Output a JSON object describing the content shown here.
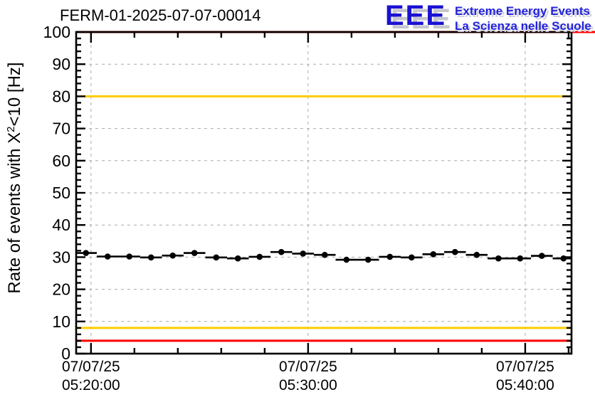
{
  "title": "FERM-01-2025-07-07-00014",
  "logo": {
    "acronym": "EEE",
    "tagline1": "Extreme Energy Events",
    "tagline2": "La Scienza nelle Scuole",
    "text_color": "#2222dd",
    "shadow_color": "#c6c6ce"
  },
  "chart_data": {
    "type": "scatter",
    "title": "FERM-01-2025-07-07-00014",
    "ylabel": {
      "pre": "Rate of events with X",
      "sup": "2",
      "post": "<10 [Hz]"
    },
    "ylim": [
      0,
      100
    ],
    "y_major_tick_step": 10,
    "y_minor_tick_step": 2,
    "grid": {
      "shown": true,
      "style": "dashed",
      "color": "#a9a9a9"
    },
    "x_axis": {
      "domain_seconds_rel_0520": [
        -41,
        1328
      ],
      "minor_tick_step_seconds": 120,
      "major_ticks": [
        {
          "t": 0,
          "date": "07/07/25",
          "time": "05:20:00"
        },
        {
          "t": 600,
          "date": "07/07/25",
          "time": "05:30:00"
        },
        {
          "t": 1200,
          "date": "07/07/25",
          "time": "05:40:00"
        }
      ]
    },
    "threshold_lines": [
      {
        "y": 100,
        "color": "#ff0000",
        "full_width": true
      },
      {
        "y": 80,
        "color": "#ffcc00",
        "full_width": false
      },
      {
        "y": 8,
        "color": "#ffcc00",
        "full_width": false
      },
      {
        "y": 4,
        "color": "#ff0000",
        "full_width": false
      }
    ],
    "series": [
      {
        "name": "rate",
        "marker": "filled-circle",
        "color": "#000000",
        "x_bin_halfwidth_seconds": 30,
        "points": [
          {
            "t": -14,
            "y": 31.3
          },
          {
            "t": 46,
            "y": 30.2
          },
          {
            "t": 106,
            "y": 30.2
          },
          {
            "t": 166,
            "y": 29.9
          },
          {
            "t": 226,
            "y": 30.5
          },
          {
            "t": 286,
            "y": 31.3
          },
          {
            "t": 346,
            "y": 29.9
          },
          {
            "t": 406,
            "y": 29.6
          },
          {
            "t": 466,
            "y": 30.1
          },
          {
            "t": 526,
            "y": 31.6
          },
          {
            "t": 586,
            "y": 31.1
          },
          {
            "t": 646,
            "y": 30.7
          },
          {
            "t": 706,
            "y": 29.2
          },
          {
            "t": 766,
            "y": 29.2
          },
          {
            "t": 826,
            "y": 30.1
          },
          {
            "t": 886,
            "y": 29.9
          },
          {
            "t": 946,
            "y": 30.9
          },
          {
            "t": 1006,
            "y": 31.6
          },
          {
            "t": 1066,
            "y": 30.7
          },
          {
            "t": 1126,
            "y": 29.6
          },
          {
            "t": 1186,
            "y": 29.6
          },
          {
            "t": 1246,
            "y": 30.4
          },
          {
            "t": 1306,
            "y": 29.6
          }
        ]
      }
    ]
  }
}
